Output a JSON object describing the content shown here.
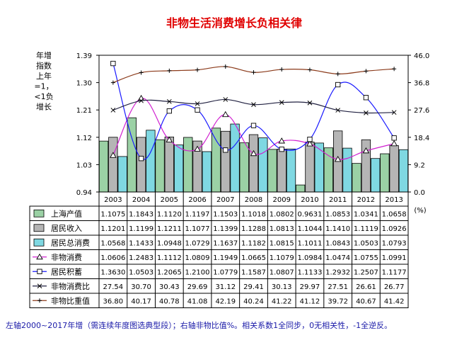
{
  "chart_data": {
    "type": "bar",
    "title": "非物生活消费增长负相关律",
    "left_axis_label": [
      "年增",
      "指数",
      "上年",
      "=1，",
      "<1负",
      "增长"
    ],
    "right_axis_unit": "(%)",
    "left_ticks": [
      "1.39",
      "1.30",
      "1.21",
      "1.12",
      "1.03",
      "0.94"
    ],
    "right_ticks": [
      "46.0",
      "36.8",
      "27.6",
      "18.4",
      "9.2",
      "0.0"
    ],
    "ylim_left": [
      0.94,
      1.39
    ],
    "ylim_right": [
      0,
      46
    ],
    "categories": [
      "2003",
      "2004",
      "2005",
      "2006",
      "2007",
      "2008",
      "2009",
      "2010",
      "2011",
      "2012",
      "2013"
    ],
    "series": [
      {
        "name": "上海产值",
        "kind": "bar",
        "axis": "left",
        "color": "#9bd1a5",
        "values": [
          1.1075,
          1.1843,
          1.112,
          1.1197,
          1.1503,
          1.1018,
          1.0802,
          0.9631,
          1.0853,
          1.0341,
          1.0658
        ],
        "labels": [
          "1.1075",
          "1.1843",
          "1.1120",
          "1.1197",
          "1.1503",
          "1.1018",
          "1.0802",
          "0.9631",
          "1.0853",
          "1.0341",
          "1.0658"
        ]
      },
      {
        "name": "居民收入",
        "kind": "bar",
        "axis": "left",
        "color": "#b5b5b5",
        "values": [
          1.1201,
          1.1199,
          1.1211,
          1.1077,
          1.1399,
          1.1288,
          1.0813,
          1.1044,
          1.141,
          1.1119,
          1.0926
        ],
        "labels": [
          "1.1201",
          "1.1199",
          "1.1211",
          "1.1077",
          "1.1399",
          "1.1288",
          "1.0813",
          "1.1044",
          "1.1410",
          "1.1119",
          "1.0926"
        ]
      },
      {
        "name": "居民总消费",
        "kind": "bar",
        "axis": "left",
        "color": "#7fd8e2",
        "values": [
          1.0568,
          1.1433,
          1.0948,
          1.0729,
          1.1637,
          1.1182,
          1.0815,
          1.1011,
          1.0843,
          1.0503,
          1.0793
        ],
        "labels": [
          "1.0568",
          "1.1433",
          "1.0948",
          "1.0729",
          "1.1637",
          "1.1182",
          "1.0815",
          "1.1011",
          "1.0843",
          "1.0503",
          "1.0793"
        ]
      },
      {
        "name": "非物消费",
        "kind": "line",
        "axis": "left",
        "color": "#d020d0",
        "marker": "triangle",
        "values": [
          1.0606,
          1.2483,
          1.1112,
          1.0809,
          1.1949,
          1.0665,
          1.1079,
          1.0984,
          1.0474,
          1.0755,
          1.0991
        ],
        "labels": [
          "1.0606",
          "1.2483",
          "1.1112",
          "1.0809",
          "1.1949",
          "1.0665",
          "1.1079",
          "1.0984",
          "1.0474",
          "1.0755",
          "1.0991"
        ]
      },
      {
        "name": "居民积蓄",
        "kind": "line",
        "axis": "left",
        "color": "#1a1aff",
        "marker": "square",
        "values": [
          1.363,
          1.0503,
          1.2065,
          1.21,
          1.0779,
          1.1587,
          1.0807,
          1.1133,
          1.2932,
          1.2507,
          1.1177
        ],
        "labels": [
          "1.3630",
          "1.0503",
          "1.2065",
          "1.2100",
          "1.0779",
          "1.1587",
          "1.0807",
          "1.1133",
          "1.2932",
          "1.2507",
          "1.1177"
        ]
      },
      {
        "name": "非物消费比",
        "kind": "line",
        "axis": "right",
        "color": "#202040",
        "marker": "x",
        "values": [
          27.54,
          30.7,
          30.43,
          29.69,
          31.12,
          29.41,
          30.13,
          29.97,
          27.51,
          26.61,
          26.77
        ],
        "labels": [
          "27.54",
          "30.70",
          "30.43",
          "29.69",
          "31.12",
          "29.41",
          "30.13",
          "29.97",
          "27.51",
          "26.61",
          "26.77"
        ]
      },
      {
        "name": "非物比重值",
        "kind": "line",
        "axis": "right",
        "color": "#8b3a1a",
        "marker": "plus",
        "values": [
          36.8,
          40.17,
          40.78,
          41.08,
          42.19,
          40.24,
          41.22,
          41.12,
          39.72,
          40.67,
          41.42
        ],
        "labels": [
          "36.80",
          "40.17",
          "40.78",
          "41.08",
          "42.19",
          "40.24",
          "41.22",
          "41.12",
          "39.72",
          "40.67",
          "41.42"
        ]
      }
    ],
    "footnote": "左轴2000~2017年增（需连续年度图选典型段）；右轴非物比值%。相关系数1全同步，0无相关性，-1全逆反。"
  }
}
